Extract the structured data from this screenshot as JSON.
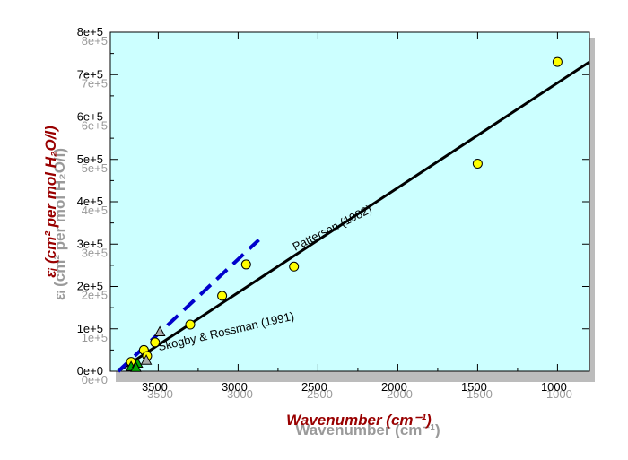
{
  "chart_data": {
    "type": "scatter",
    "xlabel": "Wavenumber (cm⁻¹)",
    "ylabel": "εᵢ (cm² per mol H₂O/l)",
    "xlim": [
      3800,
      800
    ],
    "ylim": [
      0,
      800000
    ],
    "x_reversed": true,
    "x_ticks": [
      3500,
      3000,
      2500,
      2000,
      1500,
      1000
    ],
    "x_tick_labels": [
      "3500",
      "3000",
      "2500",
      "2000",
      "1500",
      "1000"
    ],
    "y_ticks": [
      0,
      100000,
      200000,
      300000,
      400000,
      500000,
      600000,
      700000,
      800000
    ],
    "y_tick_labels": [
      "0e+0",
      "1e+5",
      "2e+5",
      "3e+5",
      "4e+5",
      "5e+5",
      "6e+5",
      "7e+5",
      "8e+5"
    ],
    "grid": false,
    "background_color": "#ccffff",
    "series": [
      {
        "kind": "points",
        "marker": "circle",
        "color": "#ffff00",
        "points": [
          {
            "x": 1000,
            "y": 730000
          },
          {
            "x": 1500,
            "y": 490000
          },
          {
            "x": 2650,
            "y": 247000
          },
          {
            "x": 2950,
            "y": 252000
          },
          {
            "x": 3100,
            "y": 178000
          },
          {
            "x": 3300,
            "y": 110000
          },
          {
            "x": 3520,
            "y": 68000
          },
          {
            "x": 3590,
            "y": 50000
          },
          {
            "x": 3570,
            "y": 36000
          },
          {
            "x": 3670,
            "y": 22000
          }
        ]
      },
      {
        "kind": "points",
        "marker": "triangle",
        "color": "#00aa00",
        "points": [
          {
            "x": 3670,
            "y": 10000
          },
          {
            "x": 3630,
            "y": 18000
          },
          {
            "x": 3640,
            "y": 8000
          }
        ]
      },
      {
        "kind": "points",
        "marker": "triangle",
        "color": "#aaaaaa",
        "points": [
          {
            "x": 3575,
            "y": 25000
          },
          {
            "x": 3490,
            "y": 92000
          }
        ]
      },
      {
        "kind": "line",
        "style": "solid",
        "color": "#000000",
        "points": [
          {
            "x": 3750,
            "y": 0
          },
          {
            "x": 800,
            "y": 730000
          }
        ]
      },
      {
        "kind": "line",
        "style": "dashed",
        "color": "#0000cc",
        "points": [
          {
            "x": 3750,
            "y": 0
          },
          {
            "x": 2870,
            "y": 310000
          }
        ]
      }
    ],
    "annotations": [
      {
        "text": "Patterson (1982)",
        "x": 2400,
        "y": 330000,
        "angle": -27
      },
      {
        "text": "Skogby & Rossman (1991)",
        "x": 3070,
        "y": 85000,
        "angle": -13
      }
    ]
  }
}
